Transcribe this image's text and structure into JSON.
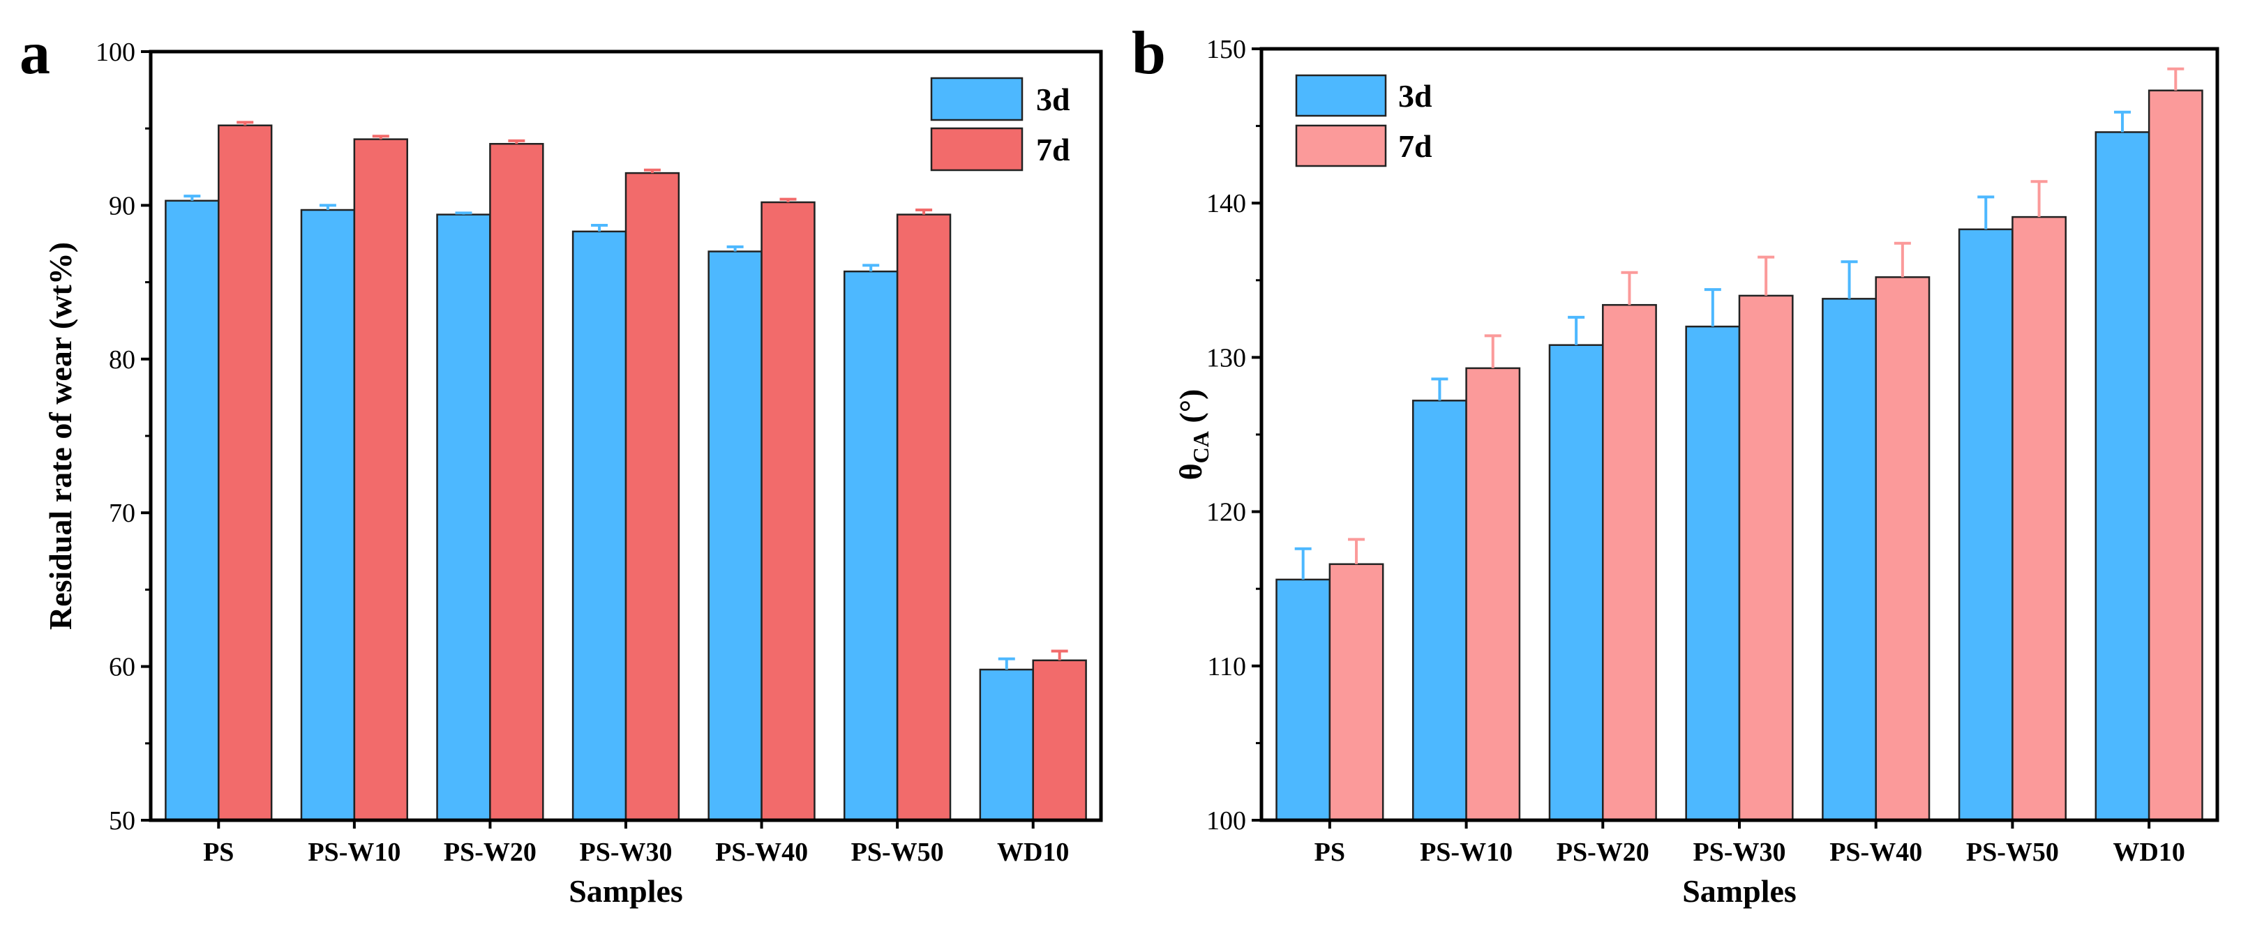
{
  "chart_data": [
    {
      "panel": "a",
      "type": "bar",
      "title": "",
      "xlabel": "Samples",
      "ylabel": "Residual rate of wear (wt%)",
      "ylim": [
        50,
        100
      ],
      "yticks": [
        50,
        60,
        70,
        80,
        90,
        100
      ],
      "categories": [
        "PS",
        "PS-W10",
        "PS-W20",
        "PS-W30",
        "PS-W40",
        "PS-W50",
        "WD10"
      ],
      "legend_position": "top-right",
      "series": [
        {
          "name": "3d",
          "color": "#4db8ff",
          "errcolor": "#4db8ff",
          "values": [
            90.3,
            89.7,
            89.4,
            88.3,
            87.0,
            85.7,
            59.8
          ],
          "errors": [
            0.3,
            0.3,
            0.1,
            0.4,
            0.3,
            0.4,
            0.7
          ]
        },
        {
          "name": "7d",
          "color": "#f26b6b",
          "errcolor": "#f26b6b",
          "values": [
            95.2,
            94.3,
            94.0,
            92.1,
            90.2,
            89.4,
            60.4
          ],
          "errors": [
            0.2,
            0.2,
            0.2,
            0.2,
            0.2,
            0.3,
            0.6
          ]
        }
      ]
    },
    {
      "panel": "b",
      "type": "bar",
      "title": "",
      "xlabel": "Samples",
      "ylabel": "θCA (°)",
      "ylabel_main": "θ",
      "ylabel_sub": "CA",
      "ylabel_unit": " (°)",
      "ylim": [
        100,
        150
      ],
      "yticks": [
        100,
        110,
        120,
        130,
        140,
        150
      ],
      "categories": [
        "PS",
        "PS-W10",
        "PS-W20",
        "PS-W30",
        "PS-W40",
        "PS-W50",
        "WD10"
      ],
      "legend_position": "top-left",
      "series": [
        {
          "name": "3d",
          "color": "#4db8ff",
          "errcolor": "#4db8ff",
          "values": [
            115.6,
            127.2,
            130.8,
            132.0,
            133.8,
            138.3,
            144.6
          ],
          "errors": [
            2.0,
            1.4,
            1.8,
            2.4,
            2.4,
            2.1,
            1.3
          ]
        },
        {
          "name": "7d",
          "color": "#fb9a9a",
          "errcolor": "#fb9a9a",
          "values": [
            116.6,
            129.3,
            133.4,
            134.0,
            135.2,
            139.1,
            147.3
          ],
          "errors": [
            1.6,
            2.1,
            2.1,
            2.5,
            2.2,
            2.3,
            1.4
          ]
        }
      ]
    }
  ]
}
